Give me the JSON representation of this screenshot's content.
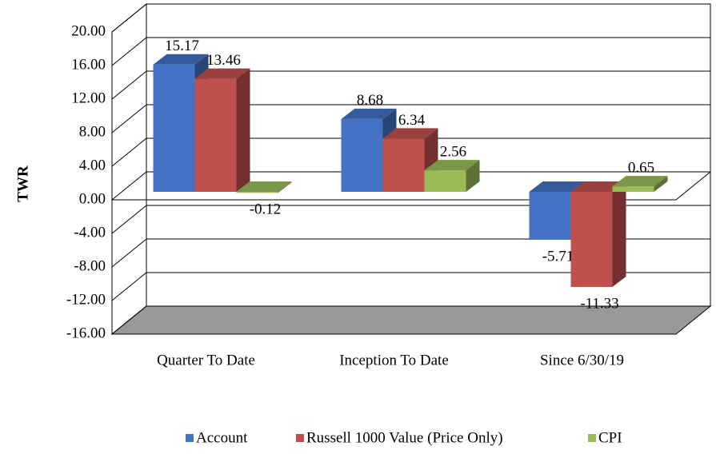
{
  "chart_data": {
    "type": "bar3d",
    "y_label": "TWR",
    "categories": [
      "Quarter To Date",
      "Inception To Date",
      "Since 6/30/19"
    ],
    "series": [
      {
        "name": "Account",
        "color": "#4472c4",
        "values": [
          15.17,
          8.68,
          -5.71
        ]
      },
      {
        "name": "Russell 1000 Value (Price Only)",
        "color": "#c0504d",
        "values": [
          13.46,
          6.34,
          -11.33
        ]
      },
      {
        "name": "CPI",
        "color": "#9bbb59",
        "values": [
          -0.12,
          2.56,
          0.65
        ]
      }
    ],
    "ylim": [
      -16,
      20
    ],
    "yticks": [
      {
        "value": 20,
        "label": "20.00"
      },
      {
        "value": 16,
        "label": "16.00"
      },
      {
        "value": 12,
        "label": "12.00"
      },
      {
        "value": 8,
        "label": "8.00"
      },
      {
        "value": 4,
        "label": "4.00"
      },
      {
        "value": 0,
        "label": "0.00"
      },
      {
        "value": -4,
        "label": "-4.00"
      },
      {
        "value": -8,
        "label": "-8.00"
      },
      {
        "value": -12,
        "label": "-12.00"
      },
      {
        "value": -16,
        "label": "-16.00"
      }
    ],
    "grid": true,
    "legend": "bottom"
  }
}
